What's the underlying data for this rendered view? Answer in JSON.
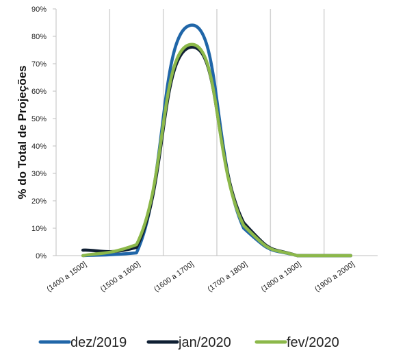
{
  "chart_data": {
    "type": "line",
    "title": "",
    "xlabel": "",
    "ylabel": "% do Total de Projeções",
    "categories": [
      "(1400 a 1500]",
      "(1500 a 1600]",
      "(1600 a 1700]",
      "(1700 a 1800]",
      "(1800 a 1900]",
      "(1900 a 2000]"
    ],
    "ylim": [
      0,
      90
    ],
    "yticks": [
      "0%",
      "10%",
      "20%",
      "30%",
      "40%",
      "50%",
      "60%",
      "70%",
      "80%",
      "90%"
    ],
    "grid": "vertical",
    "legend_position": "bottom",
    "series": [
      {
        "name": "dez/2019",
        "color": "#2066a8",
        "values": [
          0,
          1,
          84,
          10,
          0,
          0
        ]
      },
      {
        "name": "jan/2020",
        "color": "#0f1f33",
        "values": [
          2,
          3,
          76,
          12,
          0,
          0
        ]
      },
      {
        "name": "fev/2020",
        "color": "#8cb84a",
        "values": [
          0,
          4,
          77,
          11,
          0,
          0
        ]
      }
    ]
  }
}
